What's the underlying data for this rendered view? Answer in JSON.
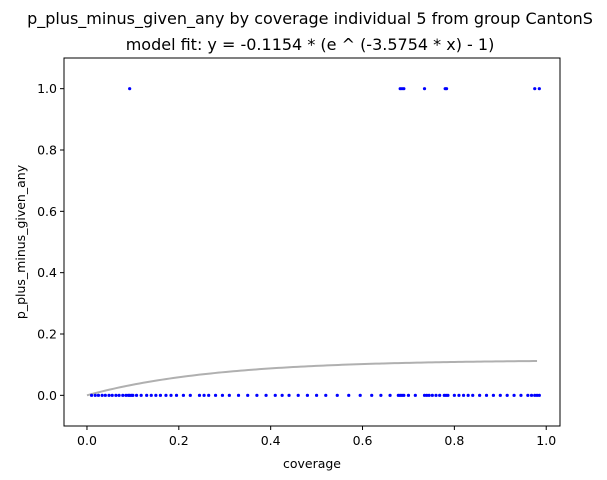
{
  "chart_data": {
    "type": "scatter",
    "title": "p_plus_minus_given_any by coverage individual 5 from group CantonS",
    "subtitle": "model fit: y = -0.1154 * (e ^ (-3.5754 * x) - 1)",
    "xlabel": "coverage",
    "ylabel": "p_plus_minus_given_any",
    "xlim": [
      -0.05,
      1.03
    ],
    "ylim": [
      -0.1,
      1.1
    ],
    "xticks": [
      "0.0",
      "0.2",
      "0.4",
      "0.6",
      "0.8",
      "1.0"
    ],
    "xtick_values": [
      0,
      0.2,
      0.4,
      0.6,
      0.8,
      1.0
    ],
    "yticks": [
      "0.0",
      "0.2",
      "0.4",
      "0.6",
      "0.8",
      "1.0"
    ],
    "ytick_values": [
      0,
      0.2,
      0.4,
      0.6,
      0.8,
      1.0
    ],
    "grid": false,
    "point_color": "#0000ff",
    "fit_color": "#b0b0b0",
    "fit": {
      "a": -0.1154,
      "b": -3.5754,
      "x_range": [
        0,
        0.98
      ]
    },
    "points": {
      "y1_x": [
        0.093,
        0.682,
        0.686,
        0.69,
        0.735,
        0.78,
        0.783,
        0.975,
        0.985
      ],
      "y0_x": [
        0.01,
        0.018,
        0.025,
        0.033,
        0.04,
        0.048,
        0.055,
        0.063,
        0.07,
        0.078,
        0.085,
        0.09,
        0.093,
        0.097,
        0.1,
        0.108,
        0.118,
        0.13,
        0.14,
        0.15,
        0.16,
        0.172,
        0.183,
        0.195,
        0.21,
        0.225,
        0.245,
        0.255,
        0.265,
        0.28,
        0.295,
        0.31,
        0.33,
        0.35,
        0.37,
        0.39,
        0.41,
        0.425,
        0.44,
        0.46,
        0.48,
        0.5,
        0.52,
        0.545,
        0.57,
        0.595,
        0.62,
        0.64,
        0.66,
        0.678,
        0.682,
        0.686,
        0.69,
        0.7,
        0.715,
        0.735,
        0.74,
        0.745,
        0.752,
        0.76,
        0.768,
        0.778,
        0.782,
        0.786,
        0.8,
        0.81,
        0.82,
        0.83,
        0.84,
        0.855,
        0.87,
        0.885,
        0.9,
        0.915,
        0.93,
        0.945,
        0.96,
        0.968,
        0.975,
        0.98,
        0.985
      ]
    }
  }
}
